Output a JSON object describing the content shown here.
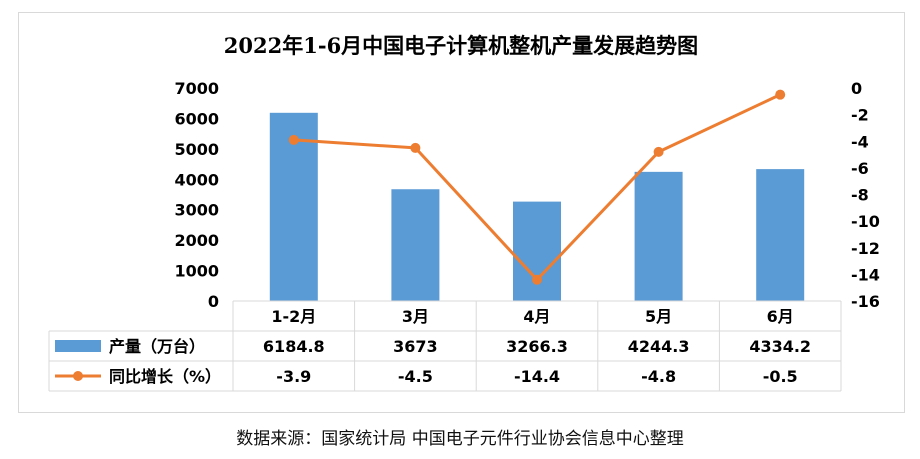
{
  "chart_data": {
    "type": "bar+line",
    "title": "2022年1-6月中国电子计算机整机产量发展趋势图",
    "categories": [
      "1-2月",
      "3月",
      "4月",
      "5月",
      "6月"
    ],
    "series": [
      {
        "name": "产量（万台）",
        "type": "bar",
        "axis": "left",
        "color": "#5b9bd5",
        "values": [
          6184.8,
          3673,
          3266.3,
          4244.3,
          4334.2
        ],
        "labels": [
          "6184.8",
          "3673",
          "3266.3",
          "4244.3",
          "4334.2"
        ]
      },
      {
        "name": "同比增长（%）",
        "type": "line",
        "axis": "right",
        "color": "#ed7d31",
        "values": [
          -3.9,
          -4.5,
          -14.4,
          -4.8,
          -0.5
        ],
        "labels": [
          "-3.9",
          "-4.5",
          "-14.4",
          "-4.8",
          "-0.5"
        ]
      }
    ],
    "left_axis": {
      "ylim": [
        0,
        7000
      ],
      "ticks": [
        "0",
        "1000",
        "2000",
        "3000",
        "4000",
        "5000",
        "6000",
        "7000"
      ]
    },
    "right_axis": {
      "ylim": [
        -16,
        0
      ],
      "ticks": [
        "0",
        "-2",
        "-4",
        "-6",
        "-8",
        "-10",
        "-12",
        "-14",
        "-16"
      ]
    },
    "data_table": true,
    "grid": false
  },
  "source_note": "数据来源：国家统计局    中国电子元件行业协会信息中心整理"
}
